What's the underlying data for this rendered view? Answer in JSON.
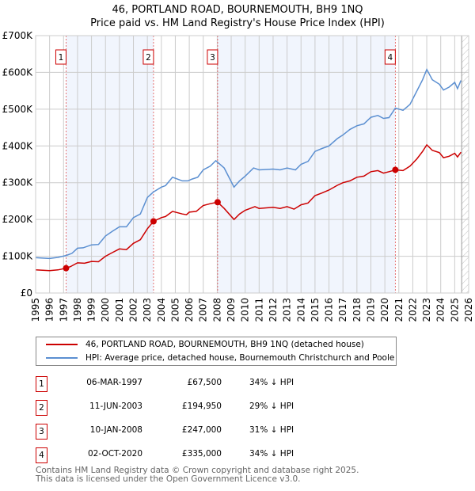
{
  "chart_data": {
    "type": "line",
    "title": "46, PORTLAND ROAD, BOURNEMOUTH, BH9 1NQ",
    "subtitle": "Price paid vs. HM Land Registry's House Price Index (HPI)",
    "xlim": [
      1995,
      2026
    ],
    "ylim": [
      0,
      700000
    ],
    "y_ticks": [
      {
        "v": 0,
        "label": "£0"
      },
      {
        "v": 100000,
        "label": "£100K"
      },
      {
        "v": 200000,
        "label": "£200K"
      },
      {
        "v": 300000,
        "label": "£300K"
      },
      {
        "v": 400000,
        "label": "£400K"
      },
      {
        "v": 500000,
        "label": "£500K"
      },
      {
        "v": 600000,
        "label": "£600K"
      },
      {
        "v": 700000,
        "label": "£700K"
      }
    ],
    "x_ticks": [
      "1995",
      "1996",
      "1997",
      "1998",
      "1999",
      "2000",
      "2001",
      "2002",
      "2003",
      "2004",
      "2005",
      "2006",
      "2007",
      "2008",
      "2009",
      "2010",
      "2011",
      "2012",
      "2013",
      "2014",
      "2015",
      "2016",
      "2017",
      "2018",
      "2019",
      "2020",
      "2021",
      "2022",
      "2023",
      "2024",
      "2025",
      "2026"
    ],
    "grid": true,
    "shaded_ranges": [
      [
        1997.18,
        2003.44
      ],
      [
        2008.03,
        2020.75
      ]
    ],
    "forecast_hatch_from": 2025.5,
    "series": [
      {
        "name": "46, PORTLAND ROAD, BOURNEMOUTH, BH9 1NQ (detached house)",
        "color": "#cc0000",
        "points": [
          [
            1995,
            63000
          ],
          [
            1996,
            61000
          ],
          [
            1996.6,
            63000
          ],
          [
            1997.18,
            67500
          ],
          [
            1997.5,
            72000
          ],
          [
            1998,
            82000
          ],
          [
            1998.5,
            81000
          ],
          [
            1999,
            86000
          ],
          [
            1999.5,
            85000
          ],
          [
            2000,
            100000
          ],
          [
            2000.5,
            110000
          ],
          [
            2001,
            120000
          ],
          [
            2001.5,
            118000
          ],
          [
            2002,
            135000
          ],
          [
            2002.5,
            145000
          ],
          [
            2003,
            175000
          ],
          [
            2003.44,
            194950
          ],
          [
            2004,
            205000
          ],
          [
            2004.3,
            208000
          ],
          [
            2004.8,
            222000
          ],
          [
            2005.5,
            215000
          ],
          [
            2005.8,
            213000
          ],
          [
            2006,
            220000
          ],
          [
            2006.5,
            222000
          ],
          [
            2007,
            238000
          ],
          [
            2007.5,
            243000
          ],
          [
            2008.03,
            247000
          ],
          [
            2008.5,
            230000
          ],
          [
            2009.2,
            200000
          ],
          [
            2009.6,
            215000
          ],
          [
            2010,
            225000
          ],
          [
            2010.7,
            235000
          ],
          [
            2011,
            230000
          ],
          [
            2012,
            233000
          ],
          [
            2012.5,
            230000
          ],
          [
            2013,
            235000
          ],
          [
            2013.5,
            228000
          ],
          [
            2014,
            240000
          ],
          [
            2014.5,
            245000
          ],
          [
            2015,
            265000
          ],
          [
            2015.5,
            272000
          ],
          [
            2016,
            280000
          ],
          [
            2016.6,
            293000
          ],
          [
            2017,
            300000
          ],
          [
            2017.5,
            305000
          ],
          [
            2018,
            315000
          ],
          [
            2018.5,
            318000
          ],
          [
            2019,
            330000
          ],
          [
            2019.5,
            333000
          ],
          [
            2019.9,
            326000
          ],
          [
            2020.3,
            330000
          ],
          [
            2020.75,
            335000
          ],
          [
            2021.3,
            333000
          ],
          [
            2021.8,
            345000
          ],
          [
            2022.3,
            365000
          ],
          [
            2022.7,
            385000
          ],
          [
            2023,
            403000
          ],
          [
            2023.4,
            388000
          ],
          [
            2023.9,
            382000
          ],
          [
            2024.2,
            368000
          ],
          [
            2024.6,
            372000
          ],
          [
            2025,
            380000
          ],
          [
            2025.2,
            370000
          ],
          [
            2025.45,
            383000
          ]
        ]
      },
      {
        "name": "HPI: Average price, detached house, Bournemouth Christchurch and Poole",
        "color": "#5b8fd1",
        "points": [
          [
            1995,
            96000
          ],
          [
            1996,
            94000
          ],
          [
            1996.6,
            97000
          ],
          [
            1997.18,
            102000
          ],
          [
            1997.6,
            108000
          ],
          [
            1998,
            122000
          ],
          [
            1998.4,
            123000
          ],
          [
            1999,
            131000
          ],
          [
            1999.5,
            132000
          ],
          [
            2000,
            155000
          ],
          [
            2000.5,
            168000
          ],
          [
            2001,
            180000
          ],
          [
            2001.5,
            180000
          ],
          [
            2002,
            205000
          ],
          [
            2002.5,
            215000
          ],
          [
            2003,
            260000
          ],
          [
            2003.44,
            275000
          ],
          [
            2004,
            288000
          ],
          [
            2004.3,
            292000
          ],
          [
            2004.8,
            315000
          ],
          [
            2005.5,
            305000
          ],
          [
            2005.9,
            305000
          ],
          [
            2006.2,
            310000
          ],
          [
            2006.6,
            315000
          ],
          [
            2007,
            335000
          ],
          [
            2007.5,
            345000
          ],
          [
            2007.9,
            360000
          ],
          [
            2008.5,
            340000
          ],
          [
            2009.2,
            288000
          ],
          [
            2009.6,
            305000
          ],
          [
            2010,
            318000
          ],
          [
            2010.6,
            340000
          ],
          [
            2011,
            335000
          ],
          [
            2012,
            337000
          ],
          [
            2012.5,
            335000
          ],
          [
            2013,
            340000
          ],
          [
            2013.6,
            335000
          ],
          [
            2014,
            350000
          ],
          [
            2014.5,
            358000
          ],
          [
            2015,
            385000
          ],
          [
            2015.5,
            393000
          ],
          [
            2016,
            400000
          ],
          [
            2016.6,
            420000
          ],
          [
            2017,
            430000
          ],
          [
            2017.5,
            445000
          ],
          [
            2018,
            455000
          ],
          [
            2018.5,
            460000
          ],
          [
            2019,
            478000
          ],
          [
            2019.5,
            483000
          ],
          [
            2019.9,
            475000
          ],
          [
            2020.3,
            477000
          ],
          [
            2020.75,
            503000
          ],
          [
            2021.3,
            497000
          ],
          [
            2021.8,
            513000
          ],
          [
            2022.3,
            550000
          ],
          [
            2022.7,
            580000
          ],
          [
            2023,
            608000
          ],
          [
            2023.4,
            580000
          ],
          [
            2023.9,
            568000
          ],
          [
            2024.2,
            552000
          ],
          [
            2024.6,
            560000
          ],
          [
            2025,
            573000
          ],
          [
            2025.2,
            556000
          ],
          [
            2025.45,
            578000
          ]
        ]
      }
    ],
    "sales": [
      {
        "id": "1",
        "x": 1997.18,
        "y": 67500,
        "date": "06-MAR-1997",
        "price": "£67,500",
        "hpi": "34% ↓ HPI"
      },
      {
        "id": "2",
        "x": 2003.44,
        "y": 194950,
        "date": "11-JUN-2003",
        "price": "£194,950",
        "hpi": "29% ↓ HPI"
      },
      {
        "id": "3",
        "x": 2008.03,
        "y": 247000,
        "date": "10-JAN-2008",
        "price": "£247,000",
        "hpi": "31% ↓ HPI"
      },
      {
        "id": "4",
        "x": 2020.75,
        "y": 335000,
        "date": "02-OCT-2020",
        "price": "£335,000",
        "hpi": "34% ↓ HPI"
      }
    ]
  },
  "footer": {
    "line1": "Contains HM Land Registry data © Crown copyright and database right 2025.",
    "line2": "This data is licensed under the Open Government Licence v3.0."
  }
}
